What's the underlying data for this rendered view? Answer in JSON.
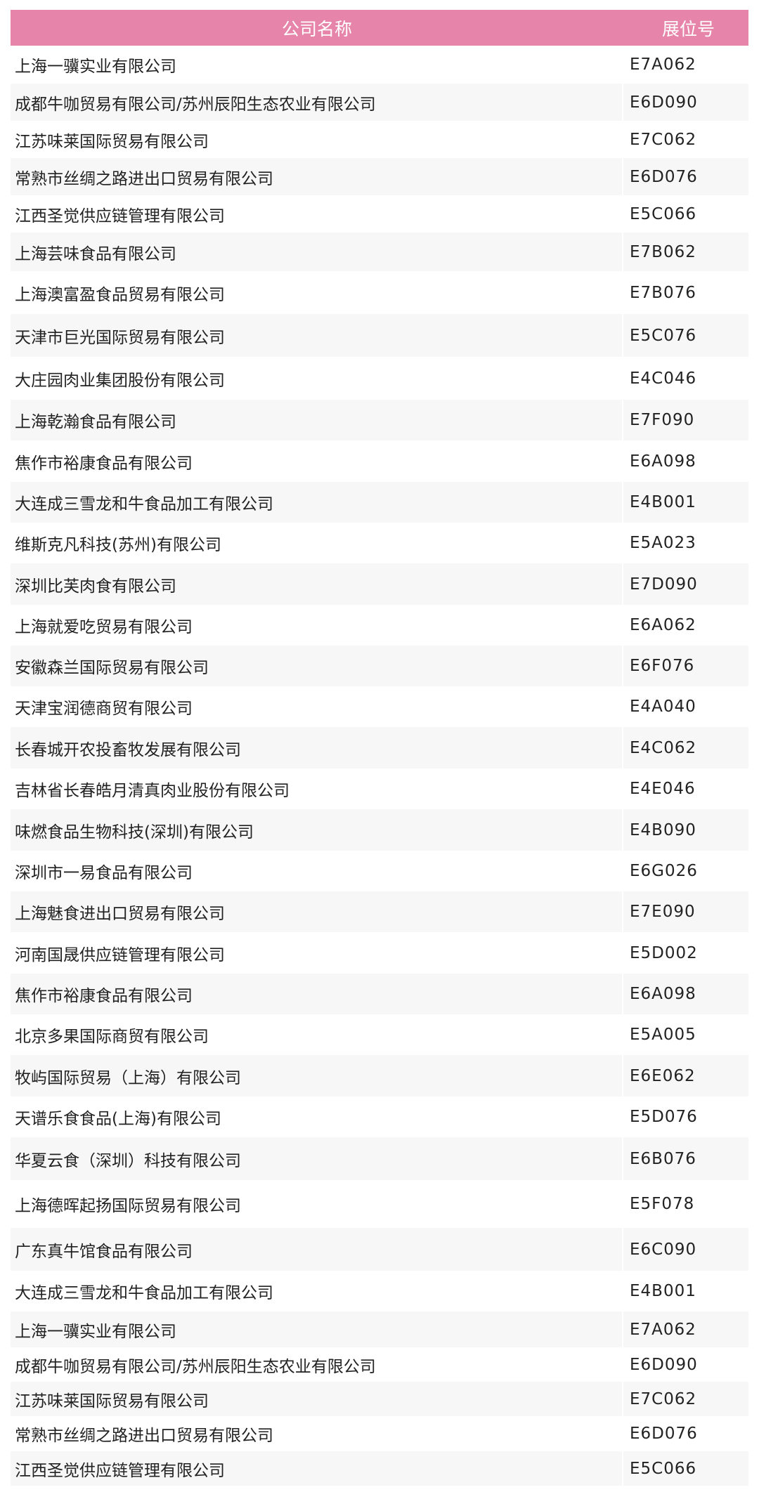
{
  "header": {
    "company_label": "公司名称",
    "booth_label": "展位号",
    "color": "#e685a9"
  },
  "rows": [
    {
      "company": "上海一骥实业有限公司",
      "booth": "E7A062"
    },
    {
      "company": "成都牛咖贸易有限公司/苏州辰阳生态农业有限公司",
      "booth": "E6D090"
    },
    {
      "company": "江苏味莱国际贸易有限公司",
      "booth": "E7C062"
    },
    {
      "company": "常熟市丝绸之路进出口贸易有限公司",
      "booth": "E6D076"
    },
    {
      "company": "江西圣觉供应链管理有限公司",
      "booth": "E5C066"
    },
    {
      "company": "上海芸味食品有限公司",
      "booth": "E7B062"
    },
    {
      "company": "上海澳富盈食品贸易有限公司",
      "booth": "E7B076"
    },
    {
      "company": "天津市巨光国际贸易有限公司",
      "booth": "E5C076"
    },
    {
      "company": "大庄园肉业集团股份有限公司",
      "booth": "E4C046"
    },
    {
      "company": "上海乾瀚食品有限公司",
      "booth": "E7F090"
    },
    {
      "company": "焦作市裕康食品有限公司",
      "booth": "E6A098"
    },
    {
      "company": "大连成三雪龙和牛食品加工有限公司",
      "booth": "E4B001"
    },
    {
      "company": "维斯克凡科技(苏州)有限公司",
      "booth": "E5A023"
    },
    {
      "company": "深圳比芙肉食有限公司",
      "booth": "E7D090"
    },
    {
      "company": "上海就爱吃贸易有限公司",
      "booth": "E6A062"
    },
    {
      "company": "安徽森兰国际贸易有限公司",
      "booth": "E6F076"
    },
    {
      "company": "天津宝润德商贸有限公司",
      "booth": "E4A040"
    },
    {
      "company": "长春城开农投畜牧发展有限公司",
      "booth": "E4C062"
    },
    {
      "company": "吉林省长春皓月清真肉业股份有限公司",
      "booth": "E4E046"
    },
    {
      "company": "味燃食品生物科技(深圳)有限公司",
      "booth": "E4B090"
    },
    {
      "company": "深圳市一易食品有限公司",
      "booth": "E6G026"
    },
    {
      "company": "上海魅食进出口贸易有限公司",
      "booth": "E7E090"
    },
    {
      "company": "河南国晟供应链管理有限公司",
      "booth": "E5D002"
    },
    {
      "company": "焦作市裕康食品有限公司",
      "booth": "E6A098"
    },
    {
      "company": "北京多果国际商贸有限公司",
      "booth": "E5A005"
    },
    {
      "company": "牧屿国际贸易（上海）有限公司",
      "booth": "E6E062"
    },
    {
      "company": "天谱乐食食品(上海)有限公司",
      "booth": "E5D076"
    },
    {
      "company": "华夏云食（深圳）科技有限公司",
      "booth": "E6B076"
    },
    {
      "company": "上海德晖起扬国际贸易有限公司",
      "booth": "E5F078"
    },
    {
      "company": "广东真牛馆食品有限公司",
      "booth": "E6C090"
    },
    {
      "company": "大连成三雪龙和牛食品加工有限公司",
      "booth": "E4B001"
    },
    {
      "company": "上海一骥实业有限公司",
      "booth": "E7A062"
    },
    {
      "company": "成都牛咖贸易有限公司/苏州辰阳生态农业有限公司",
      "booth": "E6D090"
    },
    {
      "company": "江苏味莱国际贸易有限公司",
      "booth": "E7C062"
    },
    {
      "company": "常熟市丝绸之路进出口贸易有限公司",
      "booth": "E6D076"
    },
    {
      "company": "江西圣觉供应链管理有限公司",
      "booth": "E5C066"
    }
  ]
}
